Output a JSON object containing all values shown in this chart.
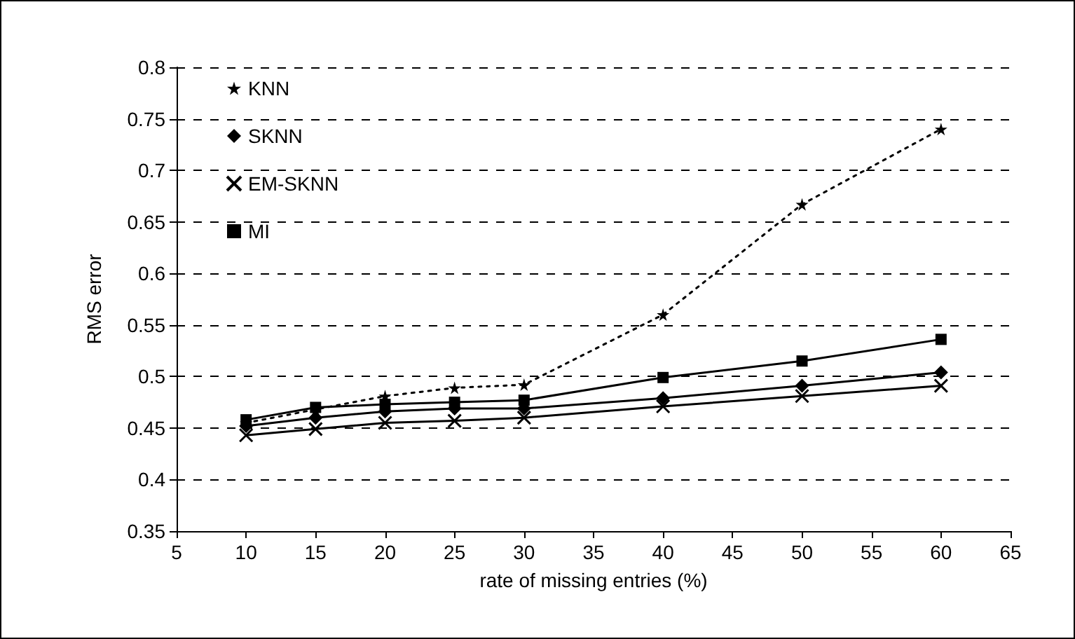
{
  "chart_data": {
    "type": "line",
    "xlabel": "rate of missing entries (%)",
    "ylabel": "RMS error",
    "xlim": [
      5,
      65
    ],
    "xticks": [
      5,
      10,
      15,
      20,
      25,
      30,
      35,
      40,
      45,
      50,
      55,
      60,
      65
    ],
    "ylim": [
      0.35,
      0.8
    ],
    "yticks": [
      0.35,
      0.4,
      0.45,
      0.5,
      0.55,
      0.6,
      0.65,
      0.7,
      0.75,
      0.8
    ],
    "x": [
      10,
      15,
      20,
      25,
      30,
      40,
      50,
      60
    ],
    "series": [
      {
        "name": "KNN",
        "color": "#000000",
        "marker": "star",
        "line_style": "dotted",
        "values": [
          0.455,
          0.468,
          0.481,
          0.489,
          0.492,
          0.56,
          0.667,
          0.74
        ]
      },
      {
        "name": "SKNN",
        "color": "#000000",
        "marker": "diamond",
        "line_style": "solid",
        "values": [
          0.452,
          0.46,
          0.466,
          0.469,
          0.469,
          0.479,
          0.491,
          0.504
        ]
      },
      {
        "name": "EM-SKNN",
        "color": "#000000",
        "marker": "cross",
        "line_style": "solid",
        "values": [
          0.443,
          0.449,
          0.455,
          0.457,
          0.46,
          0.471,
          0.481,
          0.491
        ]
      },
      {
        "name": "MI",
        "color": "#000000",
        "marker": "square",
        "line_style": "solid",
        "values": [
          0.458,
          0.47,
          0.473,
          0.475,
          0.477,
          0.499,
          0.515,
          0.536
        ]
      }
    ],
    "grid": "y",
    "legend": "top left"
  }
}
